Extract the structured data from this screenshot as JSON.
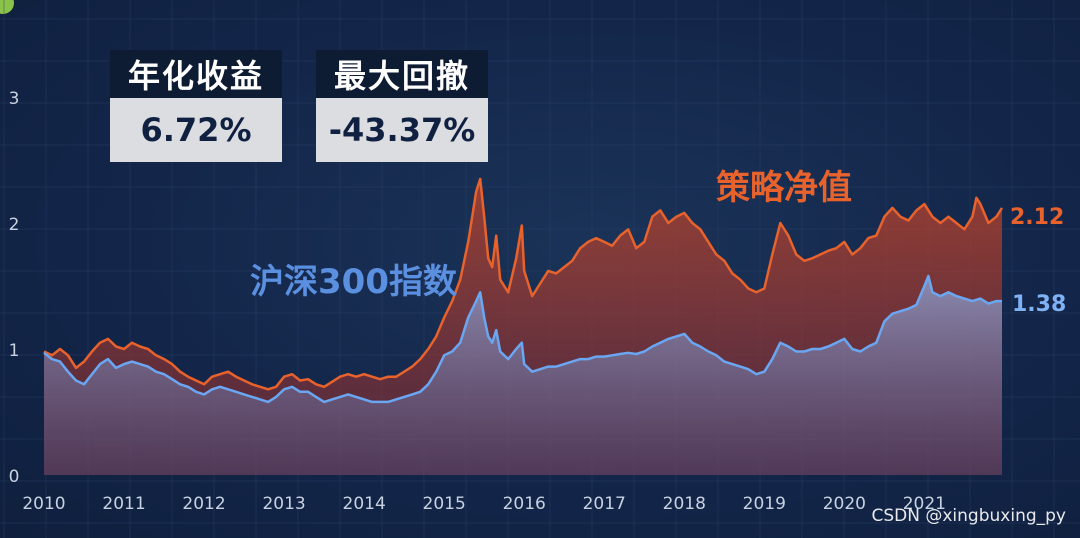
{
  "kpis": [
    {
      "label": "年化收益",
      "value": "6.72%"
    },
    {
      "label": "最大回撤",
      "value": "-43.37%"
    }
  ],
  "watermark": "CSDN @xingbuxing_py",
  "colors": {
    "strategy": "#e8622c",
    "index": "#6aa6f2",
    "background": "#13264a",
    "grid": "#2a4066"
  },
  "chart_data": {
    "type": "area",
    "title": "",
    "xlabel": "",
    "ylabel": "",
    "x_ticks": [
      "2010",
      "2011",
      "2012",
      "2013",
      "2014",
      "2015",
      "2016",
      "2017",
      "2018",
      "2019",
      "2020",
      "2021"
    ],
    "y_ticks": [
      "0",
      "1",
      "2",
      "3"
    ],
    "xlim": [
      2010.0,
      2021.97
    ],
    "ylim": [
      0,
      3.3
    ],
    "grid": true,
    "series": [
      {
        "name": "策略净值",
        "end_label": "2.12",
        "color": "#e8622c",
        "points": [
          [
            2010.0,
            0.98
          ],
          [
            2010.1,
            0.95
          ],
          [
            2010.2,
            1.0
          ],
          [
            2010.3,
            0.95
          ],
          [
            2010.4,
            0.85
          ],
          [
            2010.5,
            0.9
          ],
          [
            2010.6,
            0.98
          ],
          [
            2010.7,
            1.05
          ],
          [
            2010.8,
            1.08
          ],
          [
            2010.9,
            1.02
          ],
          [
            2011.0,
            1.0
          ],
          [
            2011.1,
            1.05
          ],
          [
            2011.2,
            1.02
          ],
          [
            2011.3,
            1.0
          ],
          [
            2011.4,
            0.95
          ],
          [
            2011.5,
            0.92
          ],
          [
            2011.6,
            0.88
          ],
          [
            2011.7,
            0.82
          ],
          [
            2011.8,
            0.78
          ],
          [
            2011.9,
            0.75
          ],
          [
            2012.0,
            0.72
          ],
          [
            2012.1,
            0.78
          ],
          [
            2012.2,
            0.8
          ],
          [
            2012.3,
            0.82
          ],
          [
            2012.4,
            0.78
          ],
          [
            2012.5,
            0.75
          ],
          [
            2012.6,
            0.72
          ],
          [
            2012.7,
            0.7
          ],
          [
            2012.8,
            0.68
          ],
          [
            2012.9,
            0.7
          ],
          [
            2013.0,
            0.78
          ],
          [
            2013.1,
            0.8
          ],
          [
            2013.2,
            0.75
          ],
          [
            2013.3,
            0.76
          ],
          [
            2013.4,
            0.72
          ],
          [
            2013.5,
            0.7
          ],
          [
            2013.6,
            0.74
          ],
          [
            2013.7,
            0.78
          ],
          [
            2013.8,
            0.8
          ],
          [
            2013.9,
            0.78
          ],
          [
            2014.0,
            0.8
          ],
          [
            2014.1,
            0.78
          ],
          [
            2014.2,
            0.76
          ],
          [
            2014.3,
            0.78
          ],
          [
            2014.4,
            0.78
          ],
          [
            2014.5,
            0.82
          ],
          [
            2014.6,
            0.86
          ],
          [
            2014.7,
            0.92
          ],
          [
            2014.8,
            1.0
          ],
          [
            2014.9,
            1.1
          ],
          [
            2015.0,
            1.25
          ],
          [
            2015.1,
            1.38
          ],
          [
            2015.2,
            1.55
          ],
          [
            2015.3,
            1.85
          ],
          [
            2015.4,
            2.25
          ],
          [
            2015.45,
            2.35
          ],
          [
            2015.5,
            2.05
          ],
          [
            2015.55,
            1.72
          ],
          [
            2015.6,
            1.65
          ],
          [
            2015.65,
            1.9
          ],
          [
            2015.7,
            1.55
          ],
          [
            2015.8,
            1.45
          ],
          [
            2015.9,
            1.72
          ],
          [
            2015.97,
            1.98
          ],
          [
            2016.0,
            1.62
          ],
          [
            2016.1,
            1.42
          ],
          [
            2016.2,
            1.52
          ],
          [
            2016.3,
            1.62
          ],
          [
            2016.4,
            1.6
          ],
          [
            2016.5,
            1.65
          ],
          [
            2016.6,
            1.7
          ],
          [
            2016.7,
            1.8
          ],
          [
            2016.8,
            1.85
          ],
          [
            2016.9,
            1.88
          ],
          [
            2017.0,
            1.85
          ],
          [
            2017.1,
            1.82
          ],
          [
            2017.2,
            1.9
          ],
          [
            2017.3,
            1.95
          ],
          [
            2017.4,
            1.8
          ],
          [
            2017.5,
            1.85
          ],
          [
            2017.6,
            2.05
          ],
          [
            2017.7,
            2.1
          ],
          [
            2017.8,
            2.0
          ],
          [
            2017.9,
            2.05
          ],
          [
            2018.0,
            2.08
          ],
          [
            2018.1,
            2.0
          ],
          [
            2018.2,
            1.95
          ],
          [
            2018.3,
            1.85
          ],
          [
            2018.4,
            1.75
          ],
          [
            2018.5,
            1.7
          ],
          [
            2018.6,
            1.6
          ],
          [
            2018.7,
            1.55
          ],
          [
            2018.8,
            1.48
          ],
          [
            2018.9,
            1.45
          ],
          [
            2019.0,
            1.48
          ],
          [
            2019.1,
            1.75
          ],
          [
            2019.2,
            2.0
          ],
          [
            2019.3,
            1.9
          ],
          [
            2019.4,
            1.75
          ],
          [
            2019.5,
            1.7
          ],
          [
            2019.6,
            1.72
          ],
          [
            2019.7,
            1.75
          ],
          [
            2019.8,
            1.78
          ],
          [
            2019.9,
            1.8
          ],
          [
            2020.0,
            1.85
          ],
          [
            2020.1,
            1.75
          ],
          [
            2020.2,
            1.8
          ],
          [
            2020.3,
            1.88
          ],
          [
            2020.4,
            1.9
          ],
          [
            2020.5,
            2.05
          ],
          [
            2020.6,
            2.12
          ],
          [
            2020.7,
            2.05
          ],
          [
            2020.8,
            2.02
          ],
          [
            2020.9,
            2.1
          ],
          [
            2021.0,
            2.15
          ],
          [
            2021.1,
            2.05
          ],
          [
            2021.2,
            2.0
          ],
          [
            2021.3,
            2.05
          ],
          [
            2021.4,
            2.0
          ],
          [
            2021.5,
            1.95
          ],
          [
            2021.6,
            2.05
          ],
          [
            2021.65,
            2.2
          ],
          [
            2021.7,
            2.15
          ],
          [
            2021.8,
            2.0
          ],
          [
            2021.9,
            2.05
          ],
          [
            2021.97,
            2.12
          ]
        ]
      },
      {
        "name": "沪深300指数",
        "end_label": "1.38",
        "color": "#6aa6f2",
        "points": [
          [
            2010.0,
            0.97
          ],
          [
            2010.1,
            0.92
          ],
          [
            2010.2,
            0.9
          ],
          [
            2010.3,
            0.82
          ],
          [
            2010.4,
            0.75
          ],
          [
            2010.5,
            0.72
          ],
          [
            2010.6,
            0.8
          ],
          [
            2010.7,
            0.88
          ],
          [
            2010.8,
            0.92
          ],
          [
            2010.9,
            0.85
          ],
          [
            2011.0,
            0.88
          ],
          [
            2011.1,
            0.9
          ],
          [
            2011.2,
            0.88
          ],
          [
            2011.3,
            0.86
          ],
          [
            2011.4,
            0.82
          ],
          [
            2011.5,
            0.8
          ],
          [
            2011.6,
            0.76
          ],
          [
            2011.7,
            0.72
          ],
          [
            2011.8,
            0.7
          ],
          [
            2011.9,
            0.66
          ],
          [
            2012.0,
            0.64
          ],
          [
            2012.1,
            0.68
          ],
          [
            2012.2,
            0.7
          ],
          [
            2012.3,
            0.68
          ],
          [
            2012.4,
            0.66
          ],
          [
            2012.5,
            0.64
          ],
          [
            2012.6,
            0.62
          ],
          [
            2012.7,
            0.6
          ],
          [
            2012.8,
            0.58
          ],
          [
            2012.9,
            0.62
          ],
          [
            2013.0,
            0.68
          ],
          [
            2013.1,
            0.7
          ],
          [
            2013.2,
            0.66
          ],
          [
            2013.3,
            0.66
          ],
          [
            2013.4,
            0.62
          ],
          [
            2013.5,
            0.58
          ],
          [
            2013.6,
            0.6
          ],
          [
            2013.7,
            0.62
          ],
          [
            2013.8,
            0.64
          ],
          [
            2013.9,
            0.62
          ],
          [
            2014.0,
            0.6
          ],
          [
            2014.1,
            0.58
          ],
          [
            2014.2,
            0.58
          ],
          [
            2014.3,
            0.58
          ],
          [
            2014.4,
            0.6
          ],
          [
            2014.5,
            0.62
          ],
          [
            2014.6,
            0.64
          ],
          [
            2014.7,
            0.66
          ],
          [
            2014.8,
            0.72
          ],
          [
            2014.9,
            0.82
          ],
          [
            2015.0,
            0.95
          ],
          [
            2015.1,
            0.98
          ],
          [
            2015.2,
            1.05
          ],
          [
            2015.3,
            1.25
          ],
          [
            2015.4,
            1.38
          ],
          [
            2015.45,
            1.45
          ],
          [
            2015.5,
            1.25
          ],
          [
            2015.55,
            1.1
          ],
          [
            2015.6,
            1.05
          ],
          [
            2015.65,
            1.15
          ],
          [
            2015.7,
            0.98
          ],
          [
            2015.8,
            0.92
          ],
          [
            2015.9,
            1.0
          ],
          [
            2015.97,
            1.05
          ],
          [
            2016.0,
            0.88
          ],
          [
            2016.1,
            0.82
          ],
          [
            2016.2,
            0.84
          ],
          [
            2016.3,
            0.86
          ],
          [
            2016.4,
            0.86
          ],
          [
            2016.5,
            0.88
          ],
          [
            2016.6,
            0.9
          ],
          [
            2016.7,
            0.92
          ],
          [
            2016.8,
            0.92
          ],
          [
            2016.9,
            0.94
          ],
          [
            2017.0,
            0.94
          ],
          [
            2017.1,
            0.95
          ],
          [
            2017.2,
            0.96
          ],
          [
            2017.3,
            0.97
          ],
          [
            2017.4,
            0.96
          ],
          [
            2017.5,
            0.98
          ],
          [
            2017.6,
            1.02
          ],
          [
            2017.7,
            1.05
          ],
          [
            2017.8,
            1.08
          ],
          [
            2017.9,
            1.1
          ],
          [
            2018.0,
            1.12
          ],
          [
            2018.1,
            1.05
          ],
          [
            2018.2,
            1.02
          ],
          [
            2018.3,
            0.98
          ],
          [
            2018.4,
            0.95
          ],
          [
            2018.5,
            0.9
          ],
          [
            2018.6,
            0.88
          ],
          [
            2018.7,
            0.86
          ],
          [
            2018.8,
            0.84
          ],
          [
            2018.9,
            0.8
          ],
          [
            2019.0,
            0.82
          ],
          [
            2019.1,
            0.92
          ],
          [
            2019.2,
            1.05
          ],
          [
            2019.3,
            1.02
          ],
          [
            2019.4,
            0.98
          ],
          [
            2019.5,
            0.98
          ],
          [
            2019.6,
            1.0
          ],
          [
            2019.7,
            1.0
          ],
          [
            2019.8,
            1.02
          ],
          [
            2019.9,
            1.05
          ],
          [
            2020.0,
            1.08
          ],
          [
            2020.1,
            1.0
          ],
          [
            2020.2,
            0.98
          ],
          [
            2020.3,
            1.02
          ],
          [
            2020.4,
            1.05
          ],
          [
            2020.5,
            1.22
          ],
          [
            2020.6,
            1.28
          ],
          [
            2020.7,
            1.3
          ],
          [
            2020.8,
            1.32
          ],
          [
            2020.9,
            1.35
          ],
          [
            2021.0,
            1.5
          ],
          [
            2021.05,
            1.58
          ],
          [
            2021.1,
            1.45
          ],
          [
            2021.2,
            1.42
          ],
          [
            2021.3,
            1.45
          ],
          [
            2021.4,
            1.42
          ],
          [
            2021.5,
            1.4
          ],
          [
            2021.6,
            1.38
          ],
          [
            2021.7,
            1.4
          ],
          [
            2021.8,
            1.36
          ],
          [
            2021.9,
            1.38
          ],
          [
            2021.97,
            1.38
          ]
        ]
      }
    ]
  }
}
